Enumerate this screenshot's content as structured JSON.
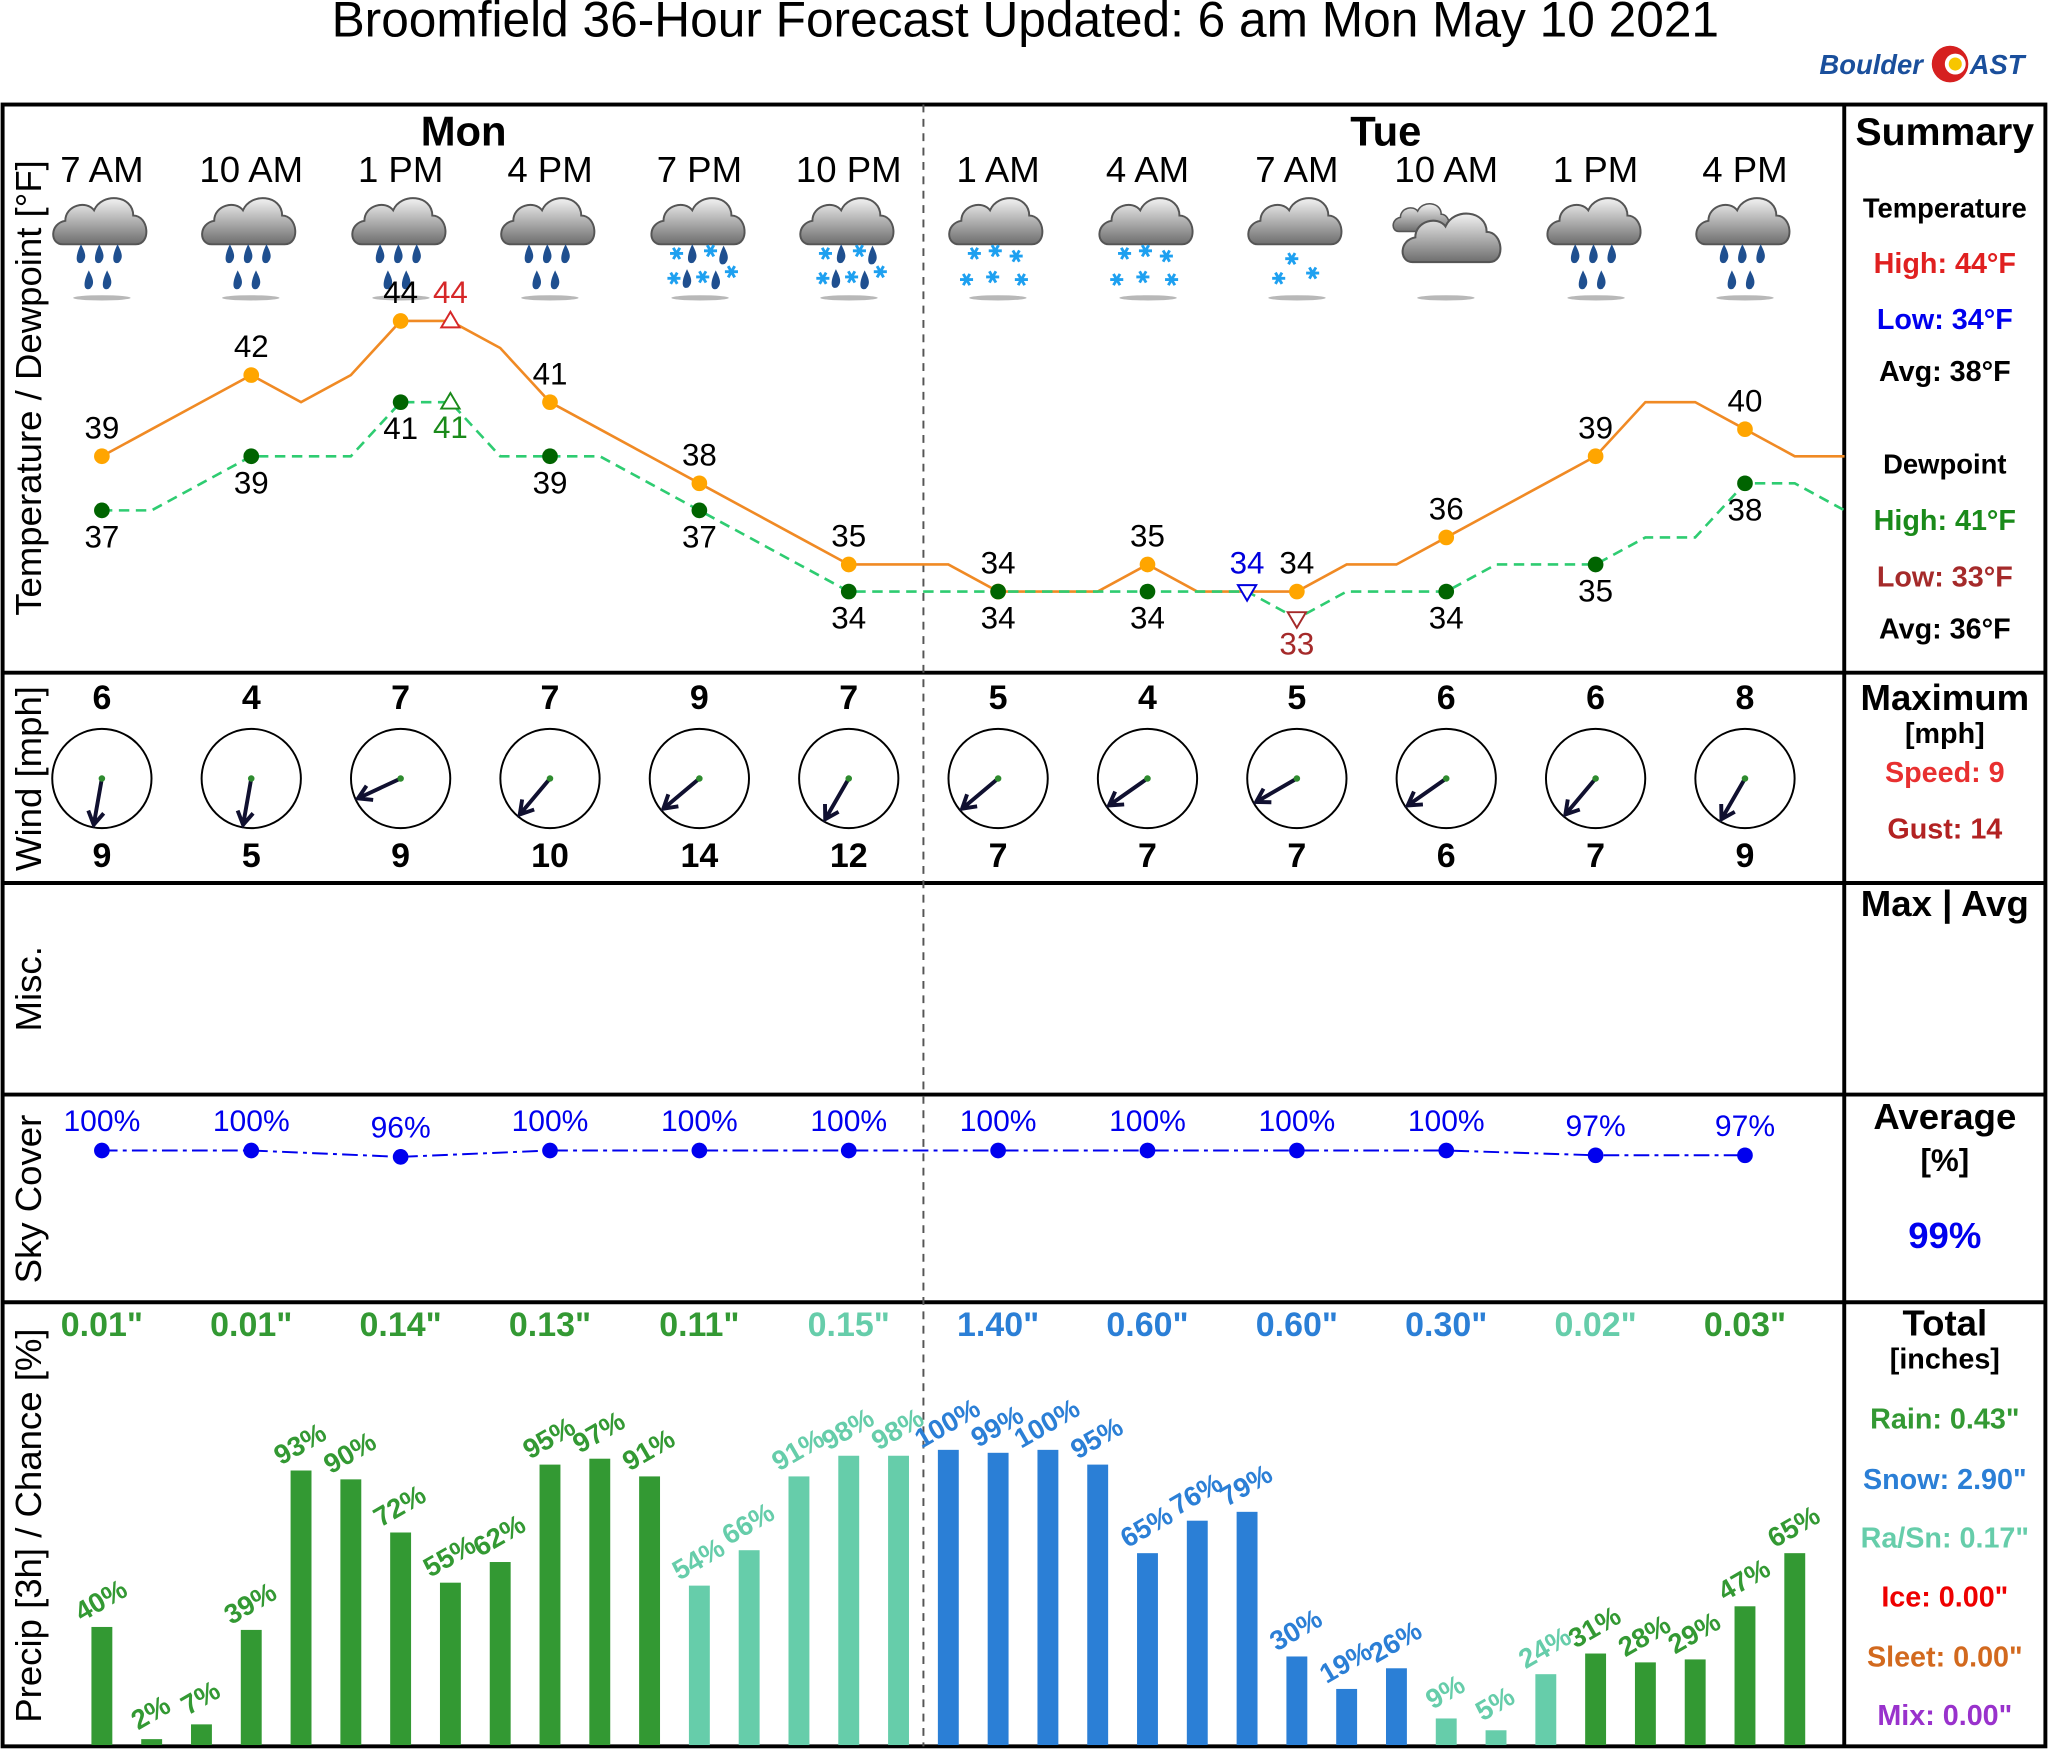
{
  "chart_data": {
    "type": "meteogram",
    "title": "Broomfield 36-Hour Forecast Updated: 6 am Mon May 10 2021",
    "logo": [
      "Boulder",
      "AST"
    ],
    "days": [
      "Mon",
      "Tue"
    ],
    "times": [
      "7 AM",
      "10 AM",
      "1 PM",
      "4 PM",
      "7 PM",
      "10 PM",
      "1 AM",
      "4 AM",
      "7 AM",
      "10 AM",
      "1 PM",
      "4 PM"
    ],
    "temp_panel": {
      "ylabel": "Temperature / Dewpoint [°F]",
      "ylim": [
        31,
        52
      ],
      "series": [
        {
          "color": "#ffa500",
          "line_color": "#f08a24",
          "label_side": "above",
          "values": [
            39,
            40,
            41,
            42,
            41,
            42,
            44,
            44,
            43,
            41,
            40,
            39,
            38,
            37,
            36,
            35,
            35,
            35,
            34,
            34,
            34,
            35,
            34,
            34,
            34,
            35,
            35,
            36,
            37,
            38,
            39,
            41,
            41,
            40,
            39,
            39
          ]
        },
        {
          "color": "#006400",
          "line_color": "#2ecc71",
          "dashed": true,
          "label_side": "below",
          "values": [
            37,
            37,
            38,
            39,
            39,
            39,
            41,
            41,
            39,
            39,
            39,
            38,
            37,
            36,
            35,
            34,
            34,
            34,
            34,
            34,
            34,
            34,
            34,
            34,
            33,
            34,
            34,
            34,
            35,
            35,
            35,
            36,
            36,
            38,
            38,
            37
          ]
        }
      ],
      "extremes": [
        {
          "series": 0,
          "index": 7,
          "marker": "up",
          "color": "#d62728"
        },
        {
          "series": 0,
          "index": 23,
          "marker": "down",
          "color": "#0000dd"
        },
        {
          "series": 1,
          "index": 7,
          "marker": "up",
          "color": "#1a8a1a"
        },
        {
          "series": 1,
          "index": 24,
          "marker": "down",
          "color": "#a52a2a"
        }
      ]
    },
    "wind": {
      "ylabel": "Wind [mph]",
      "speed": [
        6,
        4,
        7,
        7,
        9,
        7,
        5,
        4,
        5,
        6,
        6,
        8
      ],
      "gust": [
        9,
        5,
        9,
        10,
        14,
        12,
        7,
        7,
        7,
        6,
        7,
        9
      ],
      "direction": [
        10,
        10,
        65,
        40,
        50,
        30,
        50,
        55,
        60,
        55,
        40,
        30
      ]
    },
    "misc": {
      "ylabel": "Misc."
    },
    "sky": {
      "ylabel": "Sky Cover",
      "ylim": [
        5,
        135
      ],
      "color": "#0000ee",
      "values": [
        100,
        100,
        96,
        100,
        100,
        100,
        100,
        100,
        100,
        100,
        97,
        97
      ],
      "value_labels": [
        "100%",
        "100%",
        "96%",
        "100%",
        "100%",
        "100%",
        "100%",
        "100%",
        "100%",
        "100%",
        "97%",
        "97%"
      ]
    },
    "precip": {
      "ylabel": "Precip [3h] / Chance [%]",
      "ylim": [
        0,
        150
      ],
      "amounts": [
        0.01,
        0.01,
        0.14,
        0.13,
        0.11,
        0.15,
        1.4,
        0.6,
        0.6,
        0.3,
        0.02,
        0.03
      ],
      "amount_labels": [
        "0.01\"",
        "0.01\"",
        "0.14\"",
        "0.13\"",
        "0.11\"",
        "0.15\"",
        "1.40\"",
        "0.60\"",
        "0.60\"",
        "0.30\"",
        "0.02\"",
        "0.03\""
      ],
      "amount_colors": [
        "#339933",
        "#339933",
        "#339933",
        "#339933",
        "#339933",
        "#66cdaa",
        "#2b7fd6",
        "#2b7fd6",
        "#2b7fd6",
        "#2b7fd6",
        "#66cdaa",
        "#339933"
      ],
      "chance": [
        40,
        2,
        7,
        39,
        93,
        90,
        72,
        55,
        62,
        95,
        97,
        91,
        54,
        66,
        91,
        98,
        98,
        100,
        99,
        100,
        95,
        65,
        76,
        79,
        30,
        19,
        26,
        9,
        5,
        24,
        31,
        28,
        29,
        47,
        65
      ],
      "chance_labels": [
        "40%",
        "2%",
        "7%",
        "39%",
        "93%",
        "90%",
        "72%",
        "55%",
        "62%",
        "95%",
        "97%",
        "91%",
        "54%",
        "66%",
        "91%",
        "98%",
        "98%",
        "100%",
        "99%",
        "100%",
        "95%",
        "65%",
        "76%",
        "79%",
        "30%",
        "19%",
        "26%",
        "9%",
        "5%",
        "24%",
        "31%",
        "28%",
        "29%",
        "47%",
        "65%"
      ],
      "chance_colors": [
        "#339933",
        "#339933",
        "#339933",
        "#339933",
        "#339933",
        "#339933",
        "#339933",
        "#339933",
        "#339933",
        "#339933",
        "#339933",
        "#339933",
        "#66cdaa",
        "#66cdaa",
        "#66cdaa",
        "#66cdaa",
        "#66cdaa",
        "#2b7fd6",
        "#2b7fd6",
        "#2b7fd6",
        "#2b7fd6",
        "#2b7fd6",
        "#2b7fd6",
        "#2b7fd6",
        "#2b7fd6",
        "#2b7fd6",
        "#2b7fd6",
        "#66cdaa",
        "#66cdaa",
        "#66cdaa",
        "#339933",
        "#339933",
        "#339933",
        "#339933",
        "#339933"
      ]
    },
    "summary": [
      {
        "text": "Summary",
        "color": "#000000"
      },
      {
        "text": "Temperature",
        "color": "#000000"
      },
      {
        "text": "High: 44°F",
        "color": "#e02020"
      },
      {
        "text": "Low: 34°F",
        "color": "#0000ee"
      },
      {
        "text": "Avg: 38°F",
        "color": "#000000"
      },
      {
        "text": "Dewpoint",
        "color": "#000000"
      },
      {
        "text": "High: 41°F",
        "color": "#1a8a1a"
      },
      {
        "text": "Low: 33°F",
        "color": "#a52a2a"
      },
      {
        "text": "Avg: 36°F",
        "color": "#000000"
      },
      {
        "text": "Maximum",
        "color": "#000000"
      },
      {
        "text": "[mph]",
        "color": "#000000"
      },
      {
        "text": "Speed: 9",
        "color": "#e83030"
      },
      {
        "text": "Gust: 14",
        "color": "#b22222"
      },
      {
        "text": "Max | Avg",
        "color": "#000000"
      },
      {
        "text": "Average",
        "color": "#000000"
      },
      {
        "text": "[%]",
        "color": "#000000"
      },
      {
        "text": "99%",
        "color": "#0000ee"
      },
      {
        "text": "Total",
        "color": "#000000"
      },
      {
        "text": "[inches]",
        "color": "#000000"
      },
      {
        "text": "Rain: 0.43\"",
        "color": "#339933"
      },
      {
        "text": "Snow: 2.90\"",
        "color": "#2b7fd6"
      },
      {
        "text": "Ra/Sn: 0.17\"",
        "color": "#66cdaa"
      },
      {
        "text": "Ice: 0.00\"",
        "color": "#ee0000"
      },
      {
        "text": "Sleet: 0.00\"",
        "color": "#d2691e"
      },
      {
        "text": "Mix: 0.00\"",
        "color": "#9932cc"
      }
    ]
  }
}
